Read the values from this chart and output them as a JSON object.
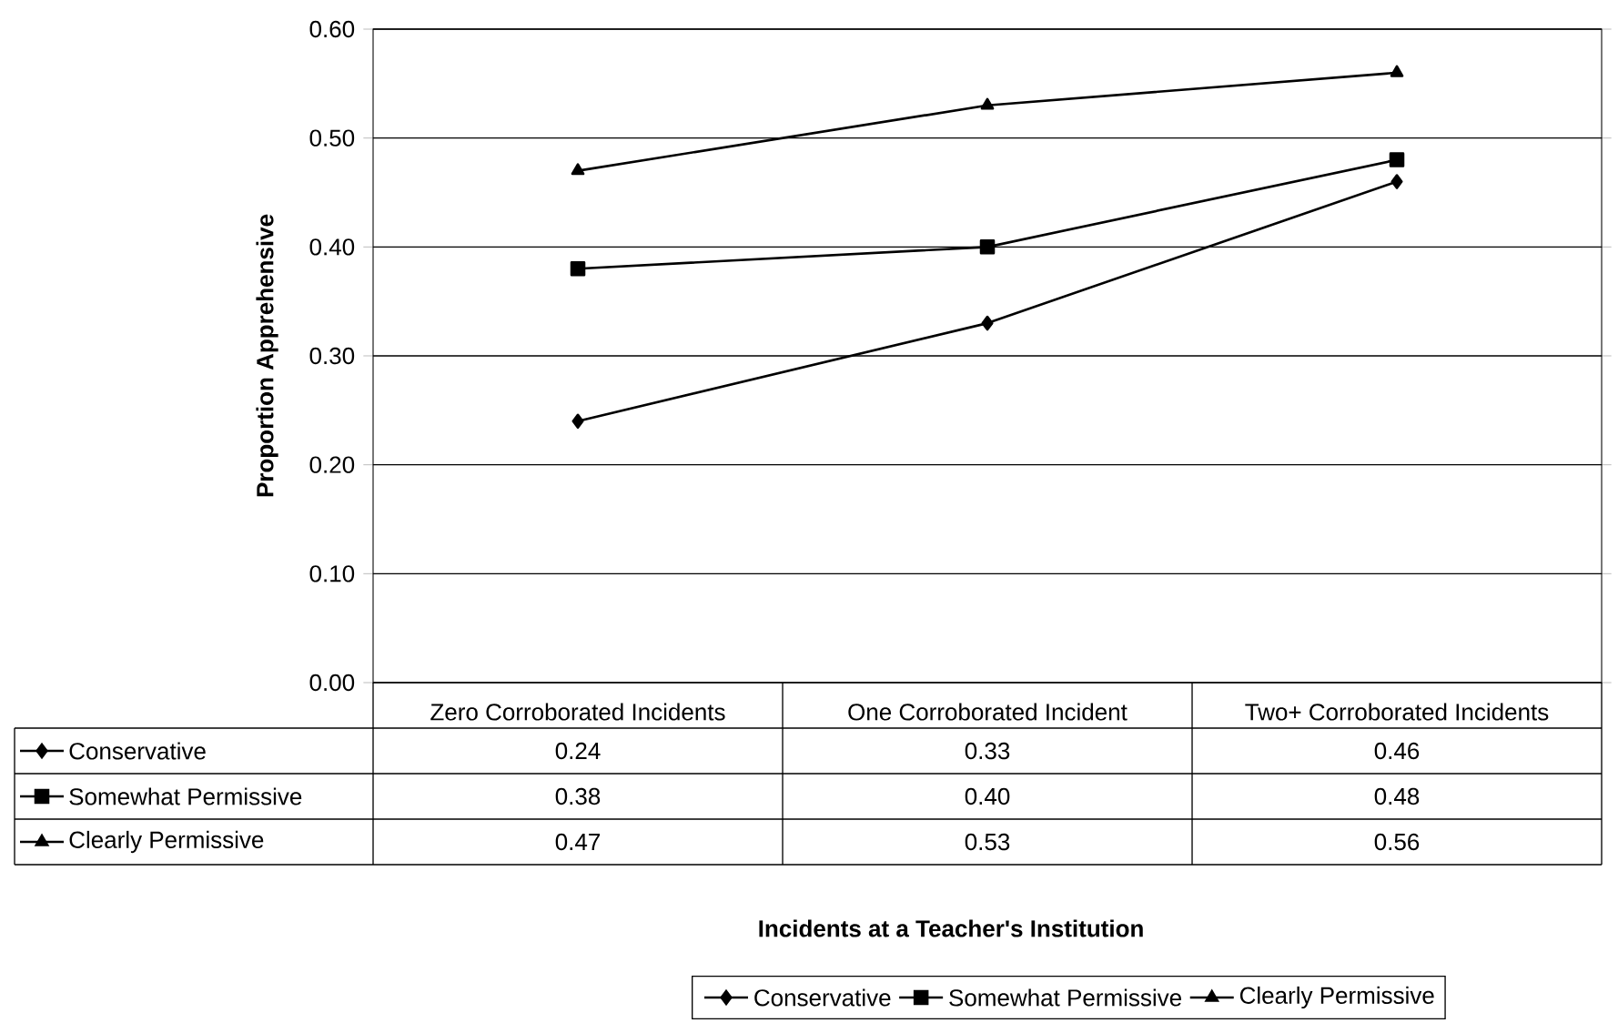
{
  "chart_data": {
    "type": "line",
    "ylabel": "Proportion Apprehensive",
    "annotations": [
      "Incidents at a Teacher's Institution"
    ],
    "categories": [
      "Zero Corroborated Incidents",
      "One Corroborated Incident",
      "Two+ Corroborated Incidents"
    ],
    "series": [
      {
        "name": "Conservative",
        "color": "#000000",
        "marker": "diamond",
        "values": [
          0.24,
          0.33,
          0.46
        ],
        "value_labels": [
          "0.24",
          "0.33",
          "0.46"
        ]
      },
      {
        "name": "Somewhat Permissive",
        "color": "#000000",
        "marker": "square",
        "values": [
          0.38,
          0.4,
          0.48
        ],
        "value_labels": [
          "0.38",
          "0.40",
          "0.48"
        ]
      },
      {
        "name": "Clearly Permissive",
        "color": "#000000",
        "marker": "triangle",
        "values": [
          0.47,
          0.53,
          0.56
        ],
        "value_labels": [
          "0.47",
          "0.53",
          "0.56"
        ]
      }
    ],
    "ylim": [
      0,
      0.6
    ],
    "yticks": [
      {
        "value": 0,
        "label": "0.00"
      },
      {
        "value": 0.1,
        "label": "0.10"
      },
      {
        "value": 0.2,
        "label": "0.20"
      },
      {
        "value": 0.3,
        "label": "0.30"
      },
      {
        "value": 0.4,
        "label": "0.40"
      },
      {
        "value": 0.5,
        "label": "0.50"
      },
      {
        "value": 0.6,
        "label": "0.60"
      }
    ],
    "grid": "y",
    "legend": "bottom",
    "line_style": "solid"
  }
}
